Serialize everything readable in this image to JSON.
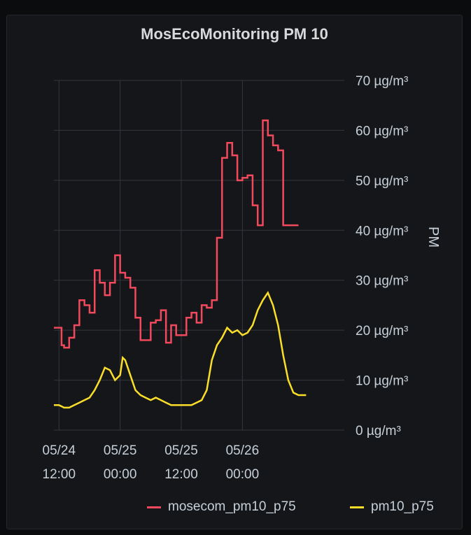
{
  "chart_data": {
    "type": "line",
    "title": "MosEcoMonitoring PM 10",
    "ylabel": "PM",
    "xlabel": "",
    "y_unit": "µg/m³",
    "ylim": [
      0,
      70
    ],
    "yticks": [
      0,
      10,
      20,
      30,
      40,
      50,
      60,
      70
    ],
    "ytick_labels": [
      "0 µg/m³",
      "10 µg/m³",
      "20 µg/m³",
      "30 µg/m³",
      "40 µg/m³",
      "50 µg/m³",
      "60 µg/m³",
      "70 µg/m³"
    ],
    "xlim": [
      "2023-05-24 11:00",
      "2023-05-26 20:00"
    ],
    "xticks": [
      "2023-05-24 12:00",
      "2023-05-25 00:00",
      "2023-05-25 12:00",
      "2023-05-26 00:00"
    ],
    "xtick_labels": [
      [
        "05/24",
        "12:00"
      ],
      [
        "05/25",
        "00:00"
      ],
      [
        "05/25",
        "12:00"
      ],
      [
        "05/26",
        "00:00"
      ]
    ],
    "grid": true,
    "legend": "bottom-right",
    "series": [
      {
        "name": "mosecom_pm10_p75",
        "color": "#f2495c",
        "step": true,
        "x": [
          "2023-05-24 11:00",
          "2023-05-24 12:00",
          "2023-05-24 12:30",
          "2023-05-24 13:00",
          "2023-05-24 14:00",
          "2023-05-24 15:00",
          "2023-05-24 16:00",
          "2023-05-24 17:00",
          "2023-05-24 18:00",
          "2023-05-24 19:00",
          "2023-05-24 20:00",
          "2023-05-24 21:00",
          "2023-05-24 22:00",
          "2023-05-24 23:00",
          "2023-05-25 00:00",
          "2023-05-25 01:00",
          "2023-05-25 02:00",
          "2023-05-25 03:00",
          "2023-05-25 04:00",
          "2023-05-25 05:00",
          "2023-05-25 06:00",
          "2023-05-25 07:00",
          "2023-05-25 08:00",
          "2023-05-25 09:00",
          "2023-05-25 10:00",
          "2023-05-25 11:00",
          "2023-05-25 12:00",
          "2023-05-25 13:00",
          "2023-05-25 14:00",
          "2023-05-25 15:00",
          "2023-05-25 16:00",
          "2023-05-25 17:00",
          "2023-05-25 18:00",
          "2023-05-25 19:00",
          "2023-05-25 20:00",
          "2023-05-25 21:00",
          "2023-05-25 22:00",
          "2023-05-25 23:00",
          "2023-05-26 00:00",
          "2023-05-26 01:00",
          "2023-05-26 02:00",
          "2023-05-26 03:00",
          "2023-05-26 04:00",
          "2023-05-26 05:00",
          "2023-05-26 06:00",
          "2023-05-26 07:00",
          "2023-05-26 08:00",
          "2023-05-26 09:00",
          "2023-05-26 10:00",
          "2023-05-26 11:00"
        ],
        "values": [
          20.5,
          20.5,
          17,
          16.5,
          18.5,
          21,
          26,
          25,
          23.5,
          32,
          29.5,
          27,
          29.5,
          35,
          31.5,
          30.5,
          28.5,
          22.5,
          18,
          18,
          21.5,
          22,
          24,
          17.5,
          21,
          19,
          19,
          22.5,
          23.5,
          21.5,
          25,
          24.5,
          26,
          38.5,
          54.5,
          57.5,
          55,
          50,
          50.5,
          51,
          45,
          41,
          62,
          59,
          57,
          56,
          41,
          41,
          41,
          41
        ]
      },
      {
        "name": "pm10_p75",
        "color": "#fade2a",
        "step": false,
        "x": [
          "2023-05-24 11:00",
          "2023-05-24 12:00",
          "2023-05-24 13:00",
          "2023-05-24 14:00",
          "2023-05-24 15:00",
          "2023-05-24 16:00",
          "2023-05-24 17:00",
          "2023-05-24 18:00",
          "2023-05-24 19:00",
          "2023-05-24 20:00",
          "2023-05-24 21:00",
          "2023-05-24 22:00",
          "2023-05-24 23:00",
          "2023-05-25 00:00",
          "2023-05-25 00:30",
          "2023-05-25 01:00",
          "2023-05-25 02:00",
          "2023-05-25 03:00",
          "2023-05-25 04:00",
          "2023-05-25 05:00",
          "2023-05-25 06:00",
          "2023-05-25 07:00",
          "2023-05-25 08:00",
          "2023-05-25 09:00",
          "2023-05-25 10:00",
          "2023-05-25 11:00",
          "2023-05-25 12:00",
          "2023-05-25 13:00",
          "2023-05-25 14:00",
          "2023-05-25 15:00",
          "2023-05-25 16:00",
          "2023-05-25 17:00",
          "2023-05-25 18:00",
          "2023-05-25 19:00",
          "2023-05-25 20:00",
          "2023-05-25 21:00",
          "2023-05-25 22:00",
          "2023-05-25 23:00",
          "2023-05-26 00:00",
          "2023-05-26 01:00",
          "2023-05-26 02:00",
          "2023-05-26 03:00",
          "2023-05-26 04:00",
          "2023-05-26 05:00",
          "2023-05-26 06:00",
          "2023-05-26 07:00",
          "2023-05-26 08:00",
          "2023-05-26 09:00",
          "2023-05-26 10:00",
          "2023-05-26 11:00",
          "2023-05-26 12:00",
          "2023-05-26 12:30"
        ],
        "values": [
          5,
          5,
          4.5,
          4.5,
          5,
          5.5,
          6,
          6.5,
          8,
          10,
          12.5,
          12,
          10,
          11,
          14.5,
          14,
          11,
          8,
          7,
          6.5,
          6,
          6.5,
          6,
          5.5,
          5,
          5,
          5,
          5,
          5,
          5.5,
          6,
          8,
          14,
          17,
          18.5,
          20.5,
          19.5,
          20,
          19,
          19.5,
          21,
          24,
          26,
          27.5,
          25,
          21,
          15,
          10,
          7.5,
          7,
          7,
          7
        ]
      }
    ]
  }
}
